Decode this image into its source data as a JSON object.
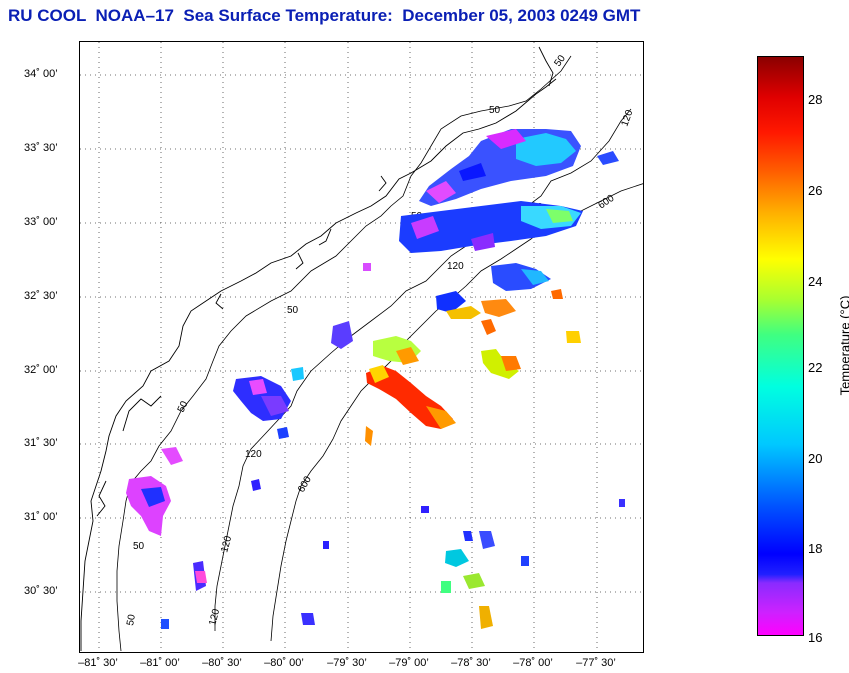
{
  "title": "RU COOL  NOAA–17  Sea Surface Temperature:  December 05, 2003 0249 GMT",
  "map": {
    "latitude_labels": [
      "34˚ 00’",
      "33˚ 30’",
      "33˚ 00’",
      "32˚ 30’",
      "32˚ 00’",
      "31˚ 30’",
      "31˚ 00’",
      "30˚ 30’"
    ],
    "longitude_labels": [
      "–81˚ 30’",
      "–81˚ 00’",
      "–80˚ 30’",
      "–80˚ 00’",
      "–79˚ 30’",
      "–79˚ 00’",
      "–78˚ 30’",
      "–78˚ 00’",
      "–77˚ 30’"
    ],
    "isobath_labels": [
      "50",
      "50",
      "50",
      "50",
      "50",
      "50",
      "120",
      "120",
      "120",
      "120",
      "120",
      "120",
      "600",
      "600",
      "600",
      "50"
    ]
  },
  "colorbar": {
    "title": "Temperature (°C)",
    "tick_labels": [
      "28",
      "26",
      "24",
      "22",
      "20",
      "18",
      "16"
    ],
    "range": [
      16,
      29
    ]
  }
}
